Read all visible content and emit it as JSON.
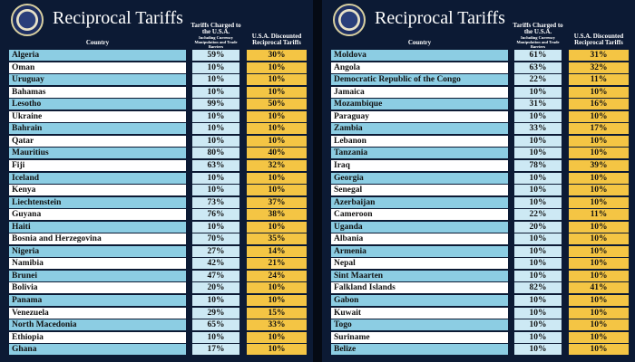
{
  "panels": [
    {
      "title": "Reciprocal Tariffs",
      "headers": {
        "country": "Country",
        "charged": "Tariffs Charged to the U.S.A.",
        "charged_note": "Including Currency Manipulation and Trade Barriers",
        "discounted": "U.S.A. Discounted Reciprocal Tariffs"
      },
      "rows": [
        [
          "Algeria",
          "59%",
          "30%"
        ],
        [
          "Oman",
          "10%",
          "10%"
        ],
        [
          "Uruguay",
          "10%",
          "10%"
        ],
        [
          "Bahamas",
          "10%",
          "10%"
        ],
        [
          "Lesotho",
          "99%",
          "50%"
        ],
        [
          "Ukraine",
          "10%",
          "10%"
        ],
        [
          "Bahrain",
          "10%",
          "10%"
        ],
        [
          "Qatar",
          "10%",
          "10%"
        ],
        [
          "Mauritius",
          "80%",
          "40%"
        ],
        [
          "Fiji",
          "63%",
          "32%"
        ],
        [
          "Iceland",
          "10%",
          "10%"
        ],
        [
          "Kenya",
          "10%",
          "10%"
        ],
        [
          "Liechtenstein",
          "73%",
          "37%"
        ],
        [
          "Guyana",
          "76%",
          "38%"
        ],
        [
          "Haiti",
          "10%",
          "10%"
        ],
        [
          "Bosnia and Herzegovina",
          "70%",
          "35%"
        ],
        [
          "Nigeria",
          "27%",
          "14%"
        ],
        [
          "Namibia",
          "42%",
          "21%"
        ],
        [
          "Brunei",
          "47%",
          "24%"
        ],
        [
          "Bolivia",
          "20%",
          "10%"
        ],
        [
          "Panama",
          "10%",
          "10%"
        ],
        [
          "Venezuela",
          "29%",
          "15%"
        ],
        [
          "North Macedonia",
          "65%",
          "33%"
        ],
        [
          "Ethiopia",
          "10%",
          "10%"
        ],
        [
          "Ghana",
          "17%",
          "10%"
        ]
      ]
    },
    {
      "title": "Reciprocal Tariffs",
      "headers": {
        "country": "Country",
        "charged": "Tariffs Charged to the U.S.A.",
        "charged_note": "Including Currency Manipulation and Trade Barriers",
        "discounted": "U.S.A. Discounted Reciprocal Tariffs"
      },
      "rows": [
        [
          "Moldova",
          "61%",
          "31%"
        ],
        [
          "Angola",
          "63%",
          "32%"
        ],
        [
          "Democratic Republic of the Congo",
          "22%",
          "11%"
        ],
        [
          "Jamaica",
          "10%",
          "10%"
        ],
        [
          "Mozambique",
          "31%",
          "16%"
        ],
        [
          "Paraguay",
          "10%",
          "10%"
        ],
        [
          "Zambia",
          "33%",
          "17%"
        ],
        [
          "Lebanon",
          "10%",
          "10%"
        ],
        [
          "Tanzania",
          "10%",
          "10%"
        ],
        [
          "Iraq",
          "78%",
          "39%"
        ],
        [
          "Georgia",
          "10%",
          "10%"
        ],
        [
          "Senegal",
          "10%",
          "10%"
        ],
        [
          "Azerbaijan",
          "10%",
          "10%"
        ],
        [
          "Cameroon",
          "22%",
          "11%"
        ],
        [
          "Uganda",
          "20%",
          "10%"
        ],
        [
          "Albania",
          "10%",
          "10%"
        ],
        [
          "Armenia",
          "10%",
          "10%"
        ],
        [
          "Nepal",
          "10%",
          "10%"
        ],
        [
          "Sint Maarten",
          "10%",
          "10%"
        ],
        [
          "Falkland Islands",
          "82%",
          "41%"
        ],
        [
          "Gabon",
          "10%",
          "10%"
        ],
        [
          "Kuwait",
          "10%",
          "10%"
        ],
        [
          "Togo",
          "10%",
          "10%"
        ],
        [
          "Suriname",
          "10%",
          "10%"
        ],
        [
          "Belize",
          "10%",
          "10%"
        ]
      ]
    }
  ]
}
